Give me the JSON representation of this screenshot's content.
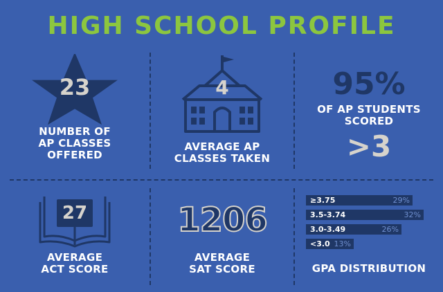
{
  "title": "HIGH SCHOOL PROFILE",
  "stats": {
    "ap_classes_offered": {
      "value": "23",
      "label_lines": [
        "NUMBER OF",
        "AP CLASSES",
        "OFFERED"
      ]
    },
    "ap_classes_taken": {
      "value": "4",
      "label_lines": [
        "AVERAGE AP",
        "CLASSES TAKEN"
      ]
    },
    "ap_scored": {
      "value": "95%",
      "label_lines": [
        "OF AP STUDENTS",
        "SCORED"
      ],
      "threshold": ">3"
    },
    "act": {
      "value": "27",
      "label_lines": [
        "AVERAGE",
        "ACT SCORE"
      ]
    },
    "sat": {
      "value": "1206",
      "label_lines": [
        "AVERAGE",
        "SAT SCORE"
      ]
    },
    "gpa": {
      "label": "GPA DISTRIBUTION",
      "rows": [
        {
          "range": "≥3.75",
          "percent": 29,
          "percent_label": "29%"
        },
        {
          "range": "3.5-3.74",
          "percent": 32,
          "percent_label": "32%"
        },
        {
          "range": "3.0-3.49",
          "percent": 26,
          "percent_label": "26%"
        },
        {
          "range": "<3.0",
          "percent": 13,
          "percent_label": "13%"
        }
      ]
    }
  },
  "colors": {
    "background": "#3a5fae",
    "accent_green": "#8cc63f",
    "dark_navy": "#1f3766",
    "number_gray": "#d6d3cc",
    "label_white": "#ffffff"
  },
  "icons": [
    "star-icon",
    "schoolhouse-icon",
    "open-book-icon"
  ]
}
